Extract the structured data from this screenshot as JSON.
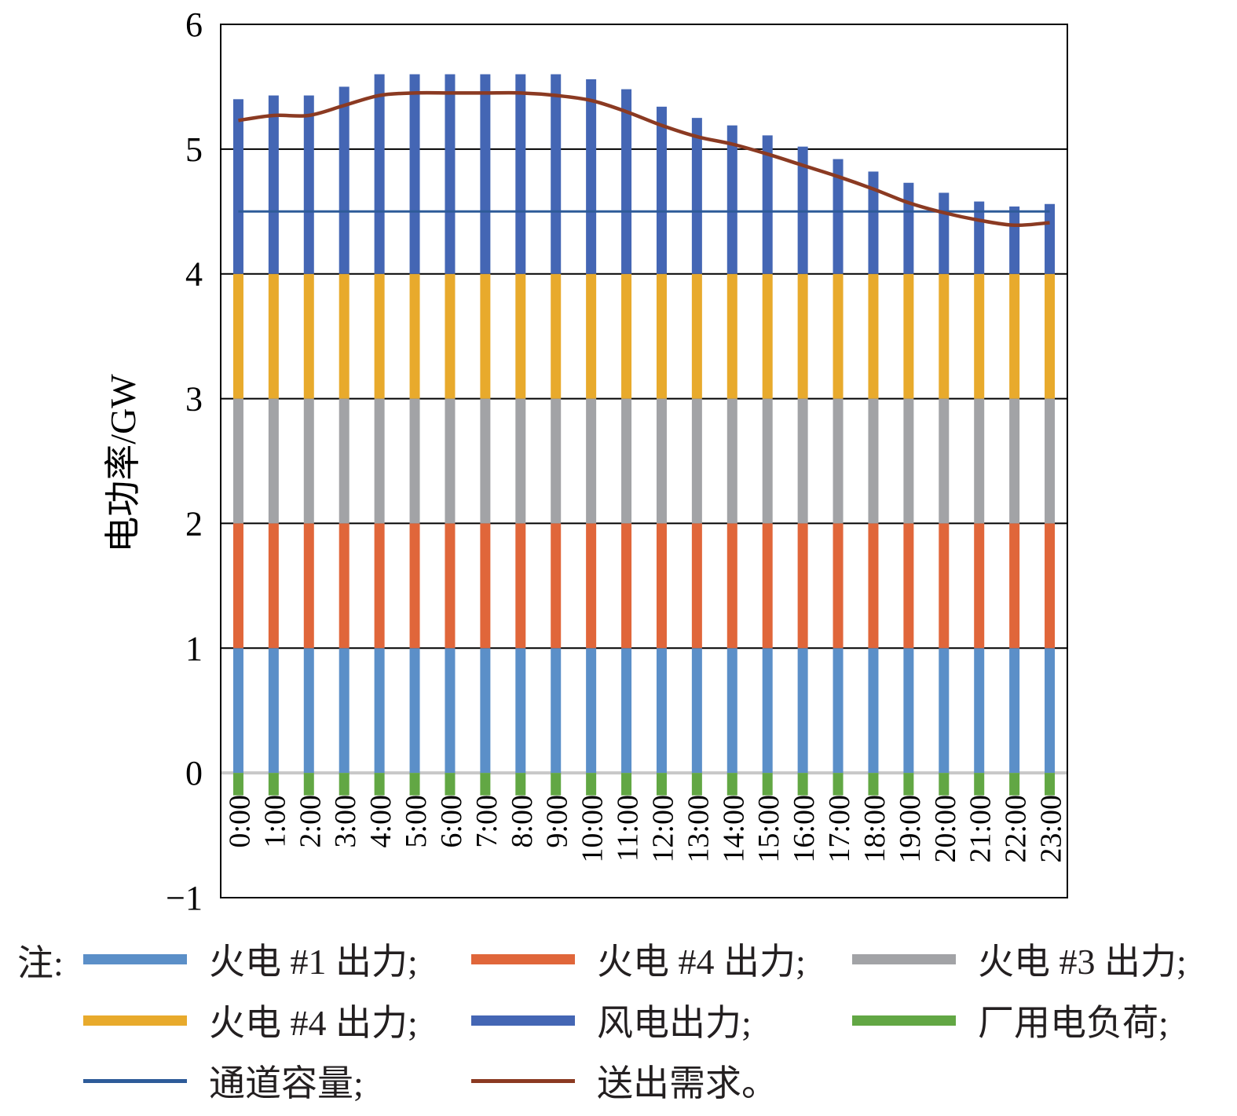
{
  "chart_data": {
    "type": "bar",
    "stacked": true,
    "ylabel": "电功率/GW",
    "xlabel": "",
    "ylim": [
      -1,
      6
    ],
    "yticks": [
      -1,
      0,
      1,
      2,
      3,
      4,
      5,
      6
    ],
    "ytick_labels": [
      "−1",
      "0",
      "1",
      "2",
      "3",
      "4",
      "5",
      "6"
    ],
    "grid": "horizontal",
    "categories": [
      "0:00",
      "1:00",
      "2:00",
      "3:00",
      "4:00",
      "5:00",
      "6:00",
      "7:00",
      "8:00",
      "9:00",
      "10:00",
      "11:00",
      "12:00",
      "13:00",
      "14:00",
      "15:00",
      "16:00",
      "17:00",
      "18:00",
      "19:00",
      "20:00",
      "21:00",
      "22:00",
      "23:00"
    ],
    "series": [
      {
        "name": "火电 #1 出力",
        "type": "bar",
        "color": "#5b8fc8",
        "values": [
          1,
          1,
          1,
          1,
          1,
          1,
          1,
          1,
          1,
          1,
          1,
          1,
          1,
          1,
          1,
          1,
          1,
          1,
          1,
          1,
          1,
          1,
          1,
          1
        ]
      },
      {
        "name": "火电 #4 出力",
        "type": "bar",
        "color": "#e0663a",
        "values": [
          1,
          1,
          1,
          1,
          1,
          1,
          1,
          1,
          1,
          1,
          1,
          1,
          1,
          1,
          1,
          1,
          1,
          1,
          1,
          1,
          1,
          1,
          1,
          1
        ]
      },
      {
        "name": "火电 #3 出力",
        "type": "bar",
        "color": "#a2a3a6",
        "values": [
          1,
          1,
          1,
          1,
          1,
          1,
          1,
          1,
          1,
          1,
          1,
          1,
          1,
          1,
          1,
          1,
          1,
          1,
          1,
          1,
          1,
          1,
          1,
          1
        ]
      },
      {
        "name": "火电 #4 出力",
        "type": "bar",
        "color": "#e8aa2c",
        "values": [
          1,
          1,
          1,
          1,
          1,
          1,
          1,
          1,
          1,
          1,
          1,
          1,
          1,
          1,
          1,
          1,
          1,
          1,
          1,
          1,
          1,
          1,
          1,
          1
        ]
      },
      {
        "name": "风电出力",
        "type": "bar",
        "color": "#4466b4",
        "values": [
          1.4,
          1.43,
          1.43,
          1.5,
          1.6,
          1.6,
          1.6,
          1.6,
          1.6,
          1.6,
          1.56,
          1.48,
          1.34,
          1.25,
          1.19,
          1.11,
          1.02,
          0.92,
          0.82,
          0.73,
          0.65,
          0.58,
          0.54,
          0.56
        ]
      },
      {
        "name": "厂用电负荷",
        "type": "bar",
        "color": "#62a744",
        "values": [
          -0.18,
          -0.18,
          -0.18,
          -0.18,
          -0.18,
          -0.18,
          -0.18,
          -0.18,
          -0.18,
          -0.18,
          -0.18,
          -0.18,
          -0.18,
          -0.18,
          -0.18,
          -0.18,
          -0.18,
          -0.18,
          -0.18,
          -0.18,
          -0.18,
          -0.18,
          -0.18,
          -0.18
        ]
      },
      {
        "name": "通道容量",
        "type": "line",
        "color": "#2e5b99",
        "values": [
          4.5,
          4.5,
          4.5,
          4.5,
          4.5,
          4.5,
          4.5,
          4.5,
          4.5,
          4.5,
          4.5,
          4.5,
          4.5,
          4.5,
          4.5,
          4.5,
          4.5,
          4.5,
          4.5,
          4.5,
          4.5,
          4.5,
          4.5,
          4.5
        ]
      },
      {
        "name": "送出需求",
        "type": "line",
        "color": "#8b3a22",
        "values": [
          5.23,
          5.27,
          5.27,
          5.35,
          5.43,
          5.45,
          5.45,
          5.45,
          5.45,
          5.43,
          5.39,
          5.3,
          5.19,
          5.1,
          5.04,
          4.96,
          4.87,
          4.78,
          4.68,
          4.57,
          4.49,
          4.43,
          4.39,
          4.41
        ]
      }
    ]
  },
  "legend": {
    "note": "注:",
    "items": [
      {
        "label": "火电 #1 出力;",
        "color": "#5b8fc8",
        "style": "bar"
      },
      {
        "label": "火电 #4 出力;",
        "color": "#e0663a",
        "style": "bar"
      },
      {
        "label": "火电 #3 出力;",
        "color": "#a2a3a6",
        "style": "bar"
      },
      {
        "label": "火电 #4 出力;",
        "color": "#e8aa2c",
        "style": "bar"
      },
      {
        "label": "风电出力;",
        "color": "#4466b4",
        "style": "bar"
      },
      {
        "label": "厂用电负荷;",
        "color": "#62a744",
        "style": "bar"
      },
      {
        "label": "通道容量;",
        "color": "#2e5b99",
        "style": "line"
      },
      {
        "label": "送出需求。",
        "color": "#8b3a22",
        "style": "line"
      }
    ]
  }
}
